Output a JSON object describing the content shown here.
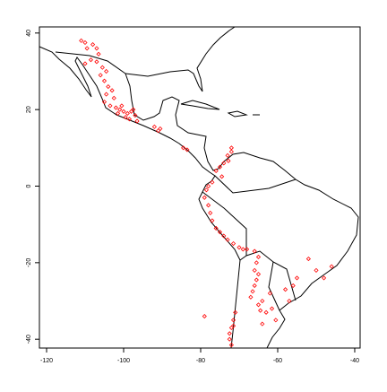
{
  "chart_data": {
    "type": "scatter",
    "color": "#ff0000",
    "xlim": [
      -121.86,
      -38.6
    ],
    "ylim": [
      -42.3,
      41.6
    ],
    "xticks": [
      -120,
      -100,
      -80,
      -60,
      -40
    ],
    "yticks": [
      -40,
      -20,
      0,
      20,
      40
    ],
    "x": [
      -111,
      -110,
      -109.5,
      -108,
      -107,
      -106.5,
      -108.5,
      -110,
      -107,
      -105.5,
      -104.5,
      -106,
      -105,
      -104,
      -103,
      -104.5,
      -102.5,
      -105,
      -103.5,
      -102,
      -101,
      -100,
      -99,
      -98,
      -97,
      -99.5,
      -101.5,
      -100.5,
      -98.5,
      -96.5,
      -97.5,
      -92,
      -91,
      -90.5,
      -84.5,
      -83.5,
      -72,
      -73,
      -74,
      -75,
      -76,
      -74.5,
      -77,
      -78,
      -78.5,
      -72.8,
      -72,
      -79,
      -78,
      -77.5,
      -77,
      -76,
      -75,
      -74,
      -73,
      -71.5,
      -70,
      -69,
      -68,
      -66,
      -65,
      -65.5,
      -66,
      -65,
      -65.5,
      -66,
      -66.5,
      -67,
      -65,
      -64,
      -64.5,
      -63,
      -61.5,
      -60.5,
      -62,
      -64,
      -58,
      -55,
      -52,
      -50,
      -48,
      -46,
      -57,
      -56,
      -79,
      -71,
      -71.5,
      -72,
      -72.5,
      -72.5,
      -72,
      -71.5
    ],
    "values": [
      38,
      37.5,
      36,
      37,
      36,
      34.5,
      33,
      32,
      32.5,
      31,
      30,
      29,
      27.5,
      26,
      25,
      24,
      23,
      22,
      21,
      20.5,
      20,
      19.5,
      19,
      19.5,
      18.5,
      18,
      19,
      21,
      17.5,
      17,
      20,
      15.5,
      14.5,
      15,
      10,
      9.5,
      10,
      8,
      6,
      5,
      4,
      2.5,
      1,
      0,
      -1,
      6.6,
      9,
      -3,
      -5,
      -7,
      -9,
      -11,
      -12,
      -13,
      -14,
      -15,
      -16,
      -16.5,
      -16.5,
      -17,
      -18.5,
      -20,
      -22,
      -23,
      -24.5,
      -26,
      -27.5,
      -29,
      -31,
      -30,
      -32.5,
      -33,
      -32,
      -35,
      -28,
      -36,
      -27,
      -24,
      -19,
      -22,
      -24,
      -21,
      -30,
      -26,
      -34,
      -33,
      -35,
      -37,
      -38.5,
      -40,
      -41.5,
      -36.5
    ]
  }
}
